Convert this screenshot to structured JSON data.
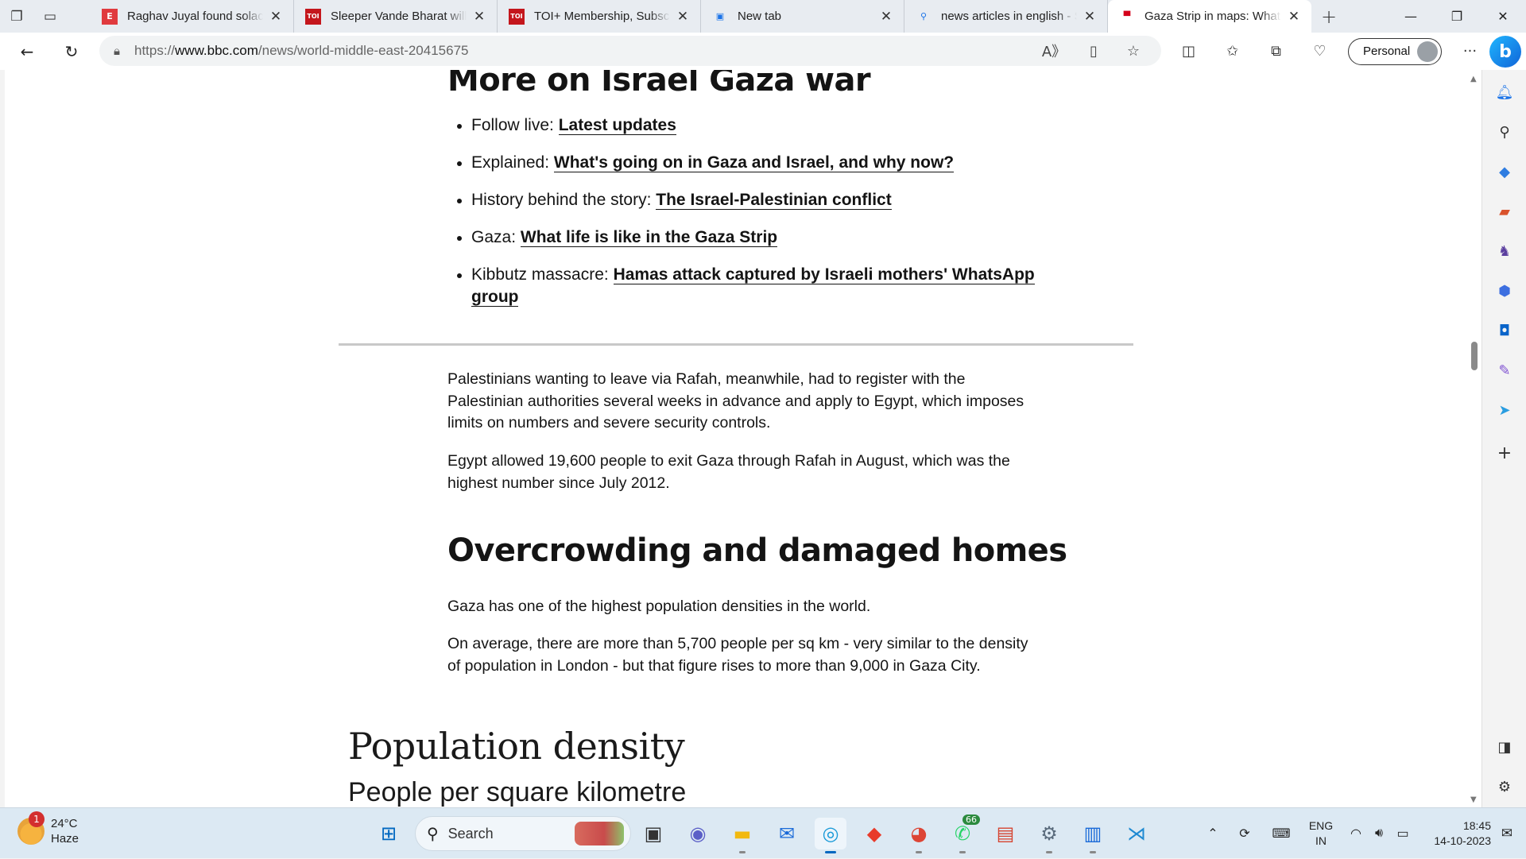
{
  "tabs": [
    {
      "title": "Raghav Juyal found solace",
      "favicon_text": "E",
      "favicon_color": "#e03a3e",
      "active": false
    },
    {
      "title": "Sleeper Vande Bharat will c",
      "favicon_text": "TOI",
      "favicon_color": "#c4161c",
      "active": false
    },
    {
      "title": "TOI+ Membership, Subscri",
      "favicon_text": "TOI",
      "favicon_color": "#c4161c",
      "active": false
    },
    {
      "title": "New tab",
      "favicon_text": "▣",
      "favicon_color": "#e8ecf1",
      "active": false
    },
    {
      "title": "news articles in english - S",
      "favicon_text": "⚲",
      "favicon_color": "#e8ecf1",
      "active": false
    },
    {
      "title": "Gaza Strip in maps: What it",
      "favicon_text": "▀",
      "favicon_color": "#ffffff",
      "active": true
    }
  ],
  "address_bar": {
    "scheme_prefix": "https://",
    "host": "www.bbc.com",
    "path": "/news/world-middle-east-20415675"
  },
  "profile": {
    "label": "Personal"
  },
  "article": {
    "more_heading": "More on Israel Gaza war",
    "related_links": [
      {
        "prefix": "Follow live: ",
        "link": "Latest updates"
      },
      {
        "prefix": "Explained: ",
        "link": "What's going on in Gaza and Israel, and why now?"
      },
      {
        "prefix": "History behind the story: ",
        "link": "The Israel-Palestinian conflict"
      },
      {
        "prefix": "Gaza: ",
        "link": "What life is like in the Gaza Strip"
      },
      {
        "prefix": "Kibbutz massacre: ",
        "link": "Hamas attack captured by Israeli mothers' WhatsApp group"
      }
    ],
    "para_rafah": "Palestinians wanting to leave via Rafah, meanwhile, had to register with the Palestinian authorities several weeks in advance and apply to Egypt, which imposes limits on numbers and severe security controls.",
    "para_egypt": "Egypt allowed 19,600 people to exit Gaza through Rafah in August, which was the highest number since July 2012.",
    "overcrowding_heading": "Overcrowding and damaged homes",
    "para_density": "Gaza has one of the highest population densities in the world.",
    "para_average": "On average, there are more than 5,700 people per sq km - very similar to the density of population in London - but that figure rises to more than 9,000 in Gaza City.",
    "chart_title": "Population density",
    "chart_subtitle": "People per square kilometre"
  },
  "taskbar": {
    "weather_badge": "1",
    "temperature": "24°C",
    "condition": "Haze",
    "search_placeholder": "Search",
    "whatsapp_badge": "66",
    "lang_line1": "ENG",
    "lang_line2": "IN",
    "time": "18:45",
    "date": "14-10-2023"
  }
}
